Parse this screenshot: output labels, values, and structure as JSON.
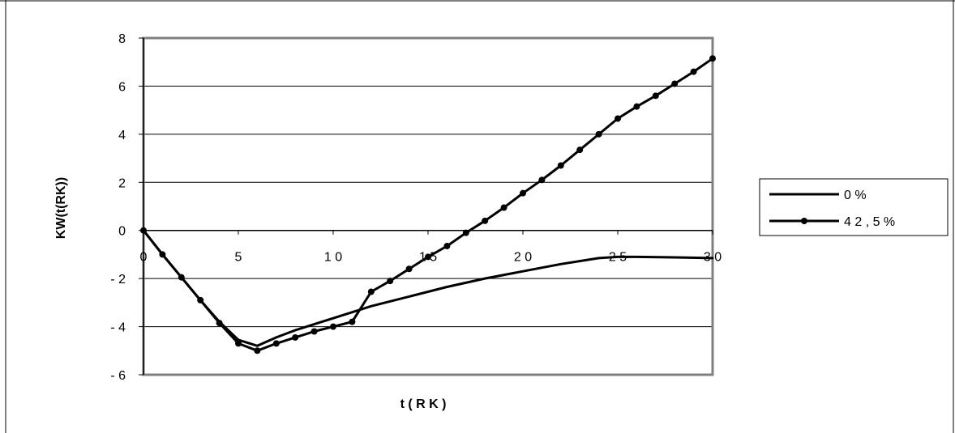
{
  "chart_data": {
    "type": "line",
    "title": "",
    "xlabel": "t ( R K )",
    "ylabel": "KW(t(RK))",
    "xlim": [
      0,
      30
    ],
    "ylim": [
      -6,
      8
    ],
    "x_ticks": [
      0,
      5,
      10,
      15,
      20,
      25,
      30
    ],
    "x_tick_labels": [
      "0",
      "5",
      "1 0",
      "1 5",
      "2 0",
      "2 5",
      "3 0"
    ],
    "y_ticks": [
      -6,
      -4,
      -2,
      0,
      2,
      4,
      6,
      8
    ],
    "y_tick_labels": [
      "- 6",
      "- 4",
      "- 2",
      "0",
      "2",
      "4",
      "6",
      "8"
    ],
    "grid": "horizontal",
    "legend_position": "right",
    "series": [
      {
        "name": "0 %",
        "marker": "none",
        "color": "#000000",
        "x": [
          0,
          1,
          2,
          3,
          4,
          5,
          6,
          7,
          8,
          9,
          10,
          12,
          14,
          16,
          18,
          20,
          22,
          24,
          25,
          26,
          28,
          30
        ],
        "y": [
          0,
          -1.0,
          -1.95,
          -2.9,
          -3.8,
          -4.55,
          -4.8,
          -4.45,
          -4.15,
          -3.9,
          -3.65,
          -3.15,
          -2.75,
          -2.35,
          -2.0,
          -1.7,
          -1.4,
          -1.15,
          -1.1,
          -1.1,
          -1.12,
          -1.15
        ]
      },
      {
        "name": "4 2 , 5 %",
        "marker": "circle",
        "color": "#000000",
        "x": [
          0,
          1,
          2,
          3,
          4,
          5,
          6,
          7,
          8,
          9,
          10,
          11,
          12,
          13,
          14,
          15,
          16,
          17,
          18,
          19,
          20,
          21,
          22,
          23,
          24,
          25,
          26,
          27,
          28,
          29,
          30
        ],
        "y": [
          0,
          -1.0,
          -1.95,
          -2.9,
          -3.85,
          -4.7,
          -5.0,
          -4.7,
          -4.45,
          -4.2,
          -4.0,
          -3.8,
          -2.55,
          -2.1,
          -1.6,
          -1.1,
          -0.65,
          -0.1,
          0.4,
          0.95,
          1.55,
          2.1,
          2.7,
          3.35,
          4.0,
          4.65,
          5.15,
          5.6,
          6.1,
          6.6,
          7.15
        ]
      }
    ]
  }
}
